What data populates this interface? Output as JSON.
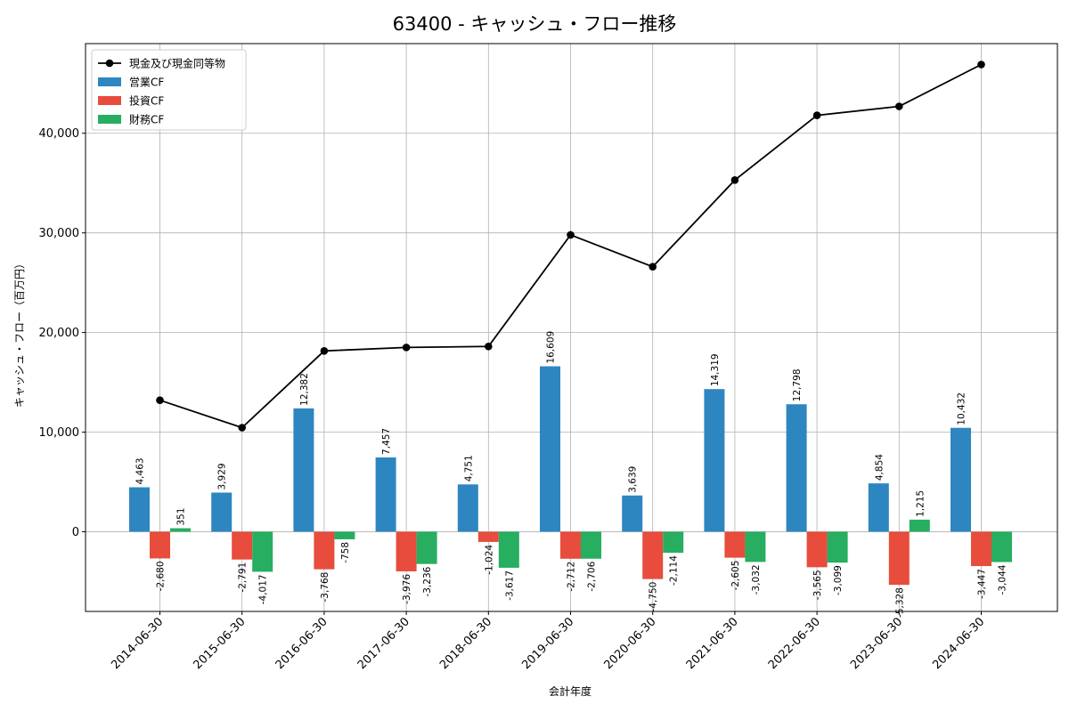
{
  "chart_data": {
    "type": "bar",
    "title": "63400 - キャッシュ・フロー推移",
    "xlabel": "会計年度",
    "ylabel": "キャッシュ・フロー（百万円）",
    "categories": [
      "2014-06-30",
      "2015-06-30",
      "2016-06-30",
      "2017-06-30",
      "2018-06-30",
      "2019-06-30",
      "2020-06-30",
      "2021-06-30",
      "2022-06-30",
      "2023-06-30",
      "2024-06-30"
    ],
    "ylim": [
      -8000,
      49000
    ],
    "yticks": [
      0,
      10000,
      20000,
      30000,
      40000
    ],
    "ytick_labels": [
      "0",
      "10,000",
      "20,000",
      "30,000",
      "40,000"
    ],
    "grid": true,
    "legend_position": "top-left",
    "series": [
      {
        "name": "営業CF",
        "kind": "bar",
        "color": "#2e86c1",
        "values": [
          4463,
          3929,
          12382,
          7457,
          4751,
          16609,
          3639,
          14319,
          12798,
          4854,
          10432
        ],
        "labels": [
          "4,463",
          "3,929",
          "12,382",
          "7,457",
          "4,751",
          "16,609",
          "3,639",
          "14,319",
          "12,798",
          "4,854",
          "10,432"
        ]
      },
      {
        "name": "投資CF",
        "kind": "bar",
        "color": "#e74c3c",
        "values": [
          -2680,
          -2791,
          -3768,
          -3976,
          -1024,
          -2712,
          -4750,
          -2605,
          -3565,
          -5328,
          -3447
        ],
        "labels": [
          "-2,680",
          "-2,791",
          "-3,768",
          "-3,976",
          "-1,024",
          "-2,712",
          "-4,750",
          "-2,605",
          "-3,565",
          "-5,328",
          "-3,447"
        ]
      },
      {
        "name": "財務CF",
        "kind": "bar",
        "color": "#27ae60",
        "values": [
          351,
          -4017,
          -758,
          -3236,
          -3617,
          -2706,
          -2114,
          -3032,
          -3099,
          1215,
          -3044
        ],
        "labels": [
          "351",
          "-4,017",
          "-758",
          "-3,236",
          "-3,617",
          "-2,706",
          "-2,114",
          "-3,032",
          "-3,099",
          "1,215",
          "-3,044"
        ]
      },
      {
        "name": "現金及び現金同等物",
        "kind": "line",
        "color": "#000000",
        "values": [
          13200,
          10450,
          18150,
          18500,
          18600,
          29800,
          26600,
          35300,
          41800,
          42700,
          46900
        ]
      }
    ]
  }
}
